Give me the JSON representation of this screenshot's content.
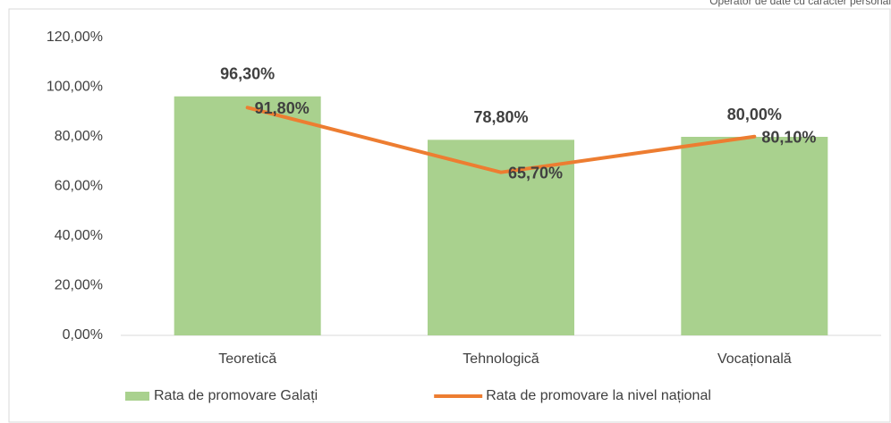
{
  "chart_data": {
    "type": "bar",
    "note": "Operator de date cu caracter personal",
    "categories": [
      "Teoretică",
      "Tehnologică",
      "Vocațională"
    ],
    "series": [
      {
        "name": "Rata de promovare Galați",
        "type": "bar",
        "color": "#a9d18e",
        "values": [
          96.3,
          78.8,
          80.0
        ],
        "value_labels": [
          "96,30%",
          "78,80%",
          "80,00%"
        ]
      },
      {
        "name": "Rata de promovare la nivel național",
        "type": "line",
        "color": "#ed7d31",
        "values": [
          91.8,
          65.7,
          80.1
        ],
        "value_labels": [
          "91,80%",
          "65,70%",
          "80,10%"
        ]
      }
    ],
    "ylim": [
      0,
      120
    ],
    "yticks": [
      {
        "value": 0,
        "label": "0,00%"
      },
      {
        "value": 20,
        "label": "20,00%"
      },
      {
        "value": 40,
        "label": "40,00%"
      },
      {
        "value": 60,
        "label": "60,00%"
      },
      {
        "value": 80,
        "label": "80,00%"
      },
      {
        "value": 100,
        "label": "100,00%"
      },
      {
        "value": 120,
        "label": "120,00%"
      }
    ],
    "legend": "bottom"
  }
}
